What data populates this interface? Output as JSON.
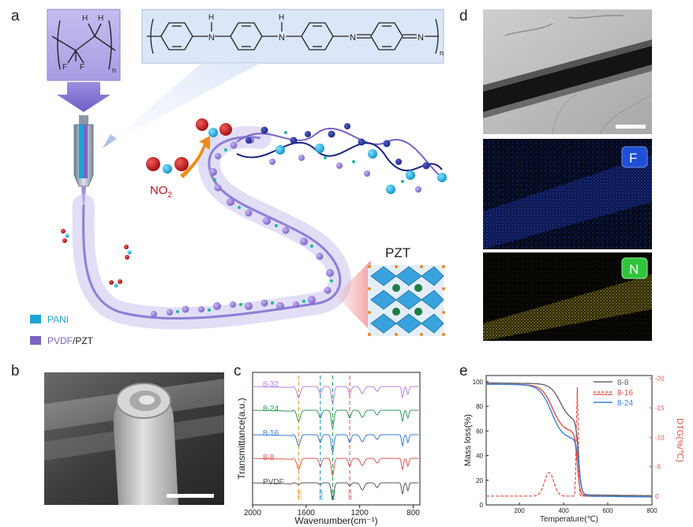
{
  "panels": {
    "a": "a",
    "b": "b",
    "c": "c",
    "d": "d",
    "e": "e"
  },
  "panel_a": {
    "pvdf_f1": "F",
    "pvdf_f2": "F",
    "pvdf_h1": "H",
    "pvdf_h2": "H",
    "pvdf_n": "n",
    "pani_h1": "H",
    "pani_h2": "H",
    "pani_n1": "N",
    "pani_n2": "N",
    "pani_n3": "N",
    "pani_n4": "N",
    "pani_sub": "n",
    "no2_main": "NO",
    "no2_sub": "2",
    "pzt": "PZT",
    "legend": [
      {
        "label": "PANI",
        "color": "#1aa6d6"
      },
      {
        "label_colored": "PVDF",
        "label_rest": "/PZT",
        "color": "#7b64c4"
      }
    ]
  },
  "panel_d": {
    "f_badge": "F",
    "n_badge": "N",
    "f_color": "#1f4fd6",
    "n_color": "#2fc43a"
  },
  "chart_data": [
    {
      "type": "line",
      "panel": "c",
      "xlabel": "Wavenumber(cm⁻¹)",
      "ylabel": "Transmittance(a.u.)",
      "xlim": [
        2000,
        750
      ],
      "x_ticks": [
        "2000",
        "1600",
        "1200",
        "800"
      ],
      "series": [
        {
          "name": "8-32",
          "color": "#c27ee0"
        },
        {
          "name": "8-24",
          "color": "#2e9a55"
        },
        {
          "name": "8-16",
          "color": "#3a78d6"
        },
        {
          "name": "8-8",
          "color": "#e0554d"
        },
        {
          "name": "PVDF",
          "color": "#555555"
        }
      ],
      "reference_lines": [
        {
          "x": 1656,
          "label": "1656",
          "color": "#e8a23a"
        },
        {
          "x": 1494,
          "label": "1494",
          "color": "#3a9ad6"
        },
        {
          "x": 1402,
          "label": "1402",
          "color": "#2fa868"
        },
        {
          "x": 1274,
          "label": "1274",
          "color": "#e36b6b"
        }
      ]
    },
    {
      "type": "line",
      "panel": "e",
      "xlabel": "Temperature(℃)",
      "ylabel": "Mass loss(%)",
      "y2label": "DTG(%/℃)",
      "xlim": [
        50,
        800
      ],
      "ylim": [
        0,
        105
      ],
      "y2lim": [
        1.5,
        -20.5
      ],
      "x_ticks": [
        "200",
        "400",
        "600",
        "800"
      ],
      "y_ticks": [
        "0",
        "20",
        "40",
        "60",
        "80",
        "100"
      ],
      "y2_ticks": [
        "0",
        "-5",
        "-10",
        "-15",
        "-20"
      ],
      "legend": "top-right",
      "series": [
        {
          "name": "8-8",
          "color": "#666666"
        },
        {
          "name": "8-16",
          "color": "#e84b44"
        },
        {
          "name": "8-24",
          "color": "#3a7fd8"
        }
      ]
    }
  ]
}
